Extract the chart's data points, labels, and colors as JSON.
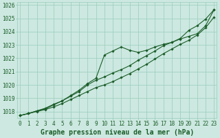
{
  "title": "Graphe pression niveau de la mer (hPa)",
  "x_labels": [
    "0",
    "1",
    "2",
    "3",
    "4",
    "5",
    "6",
    "7",
    "8",
    "9",
    "10",
    "11",
    "12",
    "13",
    "14",
    "15",
    "16",
    "17",
    "18",
    "19",
    "20",
    "21",
    "22",
    "23"
  ],
  "ylim": [
    1017.5,
    1026.2
  ],
  "xlim": [
    -0.3,
    23.3
  ],
  "yticks": [
    1018,
    1019,
    1020,
    1021,
    1022,
    1023,
    1024,
    1025,
    1026
  ],
  "bg_color": "#cce8e0",
  "grid_color": "#99ccbb",
  "line_color": "#1a5c28",
  "line1": [
    1017.7,
    1017.85,
    1018.0,
    1018.15,
    1018.35,
    1018.6,
    1018.9,
    1019.2,
    1019.5,
    1019.8,
    1020.0,
    1020.25,
    1020.55,
    1020.85,
    1021.2,
    1021.55,
    1021.95,
    1022.35,
    1022.7,
    1023.05,
    1023.35,
    1023.75,
    1024.3,
    1025.1
  ],
  "line2": [
    1017.7,
    1017.85,
    1018.05,
    1018.2,
    1018.5,
    1018.8,
    1019.2,
    1019.6,
    1020.1,
    1020.5,
    1022.25,
    1022.55,
    1022.85,
    1022.6,
    1022.45,
    1022.6,
    1022.85,
    1023.05,
    1023.2,
    1023.45,
    1023.65,
    1023.85,
    1024.45,
    1025.65
  ],
  "line3": [
    1017.7,
    1017.85,
    1018.05,
    1018.25,
    1018.55,
    1018.8,
    1019.15,
    1019.5,
    1020.0,
    1020.35,
    1020.6,
    1020.9,
    1021.15,
    1021.45,
    1021.85,
    1022.2,
    1022.55,
    1022.95,
    1023.2,
    1023.5,
    1024.1,
    1024.45,
    1024.95,
    1025.65
  ],
  "marker": "D",
  "marker_size": 1.8,
  "linewidth": 0.8,
  "title_fontsize": 7,
  "tick_fontsize": 5.5
}
